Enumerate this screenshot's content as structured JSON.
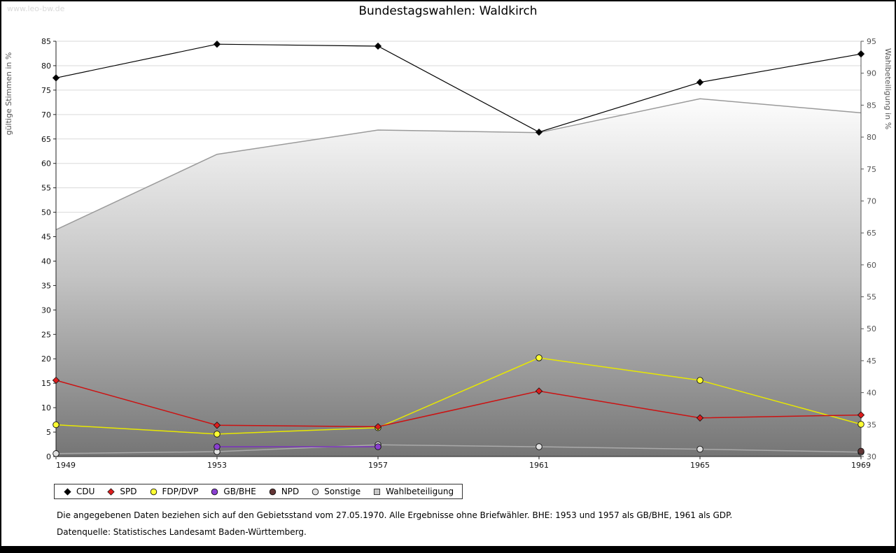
{
  "site": "www.leo-bw.de",
  "chart_data": {
    "type": "line",
    "title": "Bundestagswahlen: Waldkirch",
    "x": [
      1949,
      1953,
      1957,
      1961,
      1965,
      1969
    ],
    "grid": true,
    "legend_position": "bottom",
    "axes": {
      "left": {
        "label": "gültige Stimmen in %",
        "min": 0,
        "max": 85,
        "step": 5
      },
      "right": {
        "label": "Wahlbeteiligung in %",
        "min": 30,
        "max": 95,
        "step": 5
      }
    },
    "series": [
      {
        "name": "Wahlbeteiligung",
        "axis": "right",
        "kind": "area",
        "marker": "square",
        "color": "#9a9a9a",
        "fill": "gradient",
        "values": [
          65.5,
          77.3,
          81.1,
          80.7,
          86.0,
          83.8
        ]
      },
      {
        "name": "Sonstige",
        "axis": "left",
        "kind": "line",
        "marker": "circle",
        "color": "#aaaaaa",
        "fill": "#e2e2e2",
        "values": [
          0.6,
          1.0,
          2.4,
          2.0,
          1.5,
          0.9
        ]
      },
      {
        "name": "GB/BHE",
        "axis": "left",
        "kind": "line",
        "marker": "circle",
        "color": "#7b2fbe",
        "fill": "#8a3fd0",
        "values": [
          null,
          2.0,
          2.0,
          null,
          null,
          null
        ]
      },
      {
        "name": "NPD",
        "axis": "left",
        "kind": "line",
        "marker": "circle",
        "color": "#5a2d2d",
        "fill": "#633535",
        "values": [
          null,
          null,
          null,
          null,
          null,
          1.1
        ]
      },
      {
        "name": "FDP/DVP",
        "axis": "left",
        "kind": "line",
        "marker": "circle",
        "color": "#e8e800",
        "fill": "#ffff33",
        "values": [
          6.5,
          4.6,
          5.9,
          20.2,
          15.6,
          6.6
        ]
      },
      {
        "name": "SPD",
        "axis": "left",
        "kind": "line",
        "marker": "diamond",
        "color": "#cc1111",
        "fill": "#dd1c1c",
        "values": [
          15.6,
          6.4,
          6.1,
          13.4,
          7.9,
          8.5
        ]
      },
      {
        "name": "CDU",
        "axis": "left",
        "kind": "line",
        "marker": "diamond",
        "color": "#000000",
        "fill": "#000000",
        "values": [
          77.5,
          84.4,
          84.0,
          66.4,
          76.6,
          82.4
        ]
      }
    ],
    "legend_order": [
      "CDU",
      "SPD",
      "FDP/DVP",
      "GB/BHE",
      "NPD",
      "Sonstige",
      "Wahlbeteiligung"
    ]
  },
  "footnotes": [
    "Die angegebenen Daten beziehen sich auf den Gebietsstand vom 27.05.1970. Alle Ergebnisse ohne Briefwähler. BHE: 1953 und 1957 als GB/BHE, 1961 als GDP.",
    "Datenquelle: Statistisches Landesamt Baden-Württemberg."
  ]
}
